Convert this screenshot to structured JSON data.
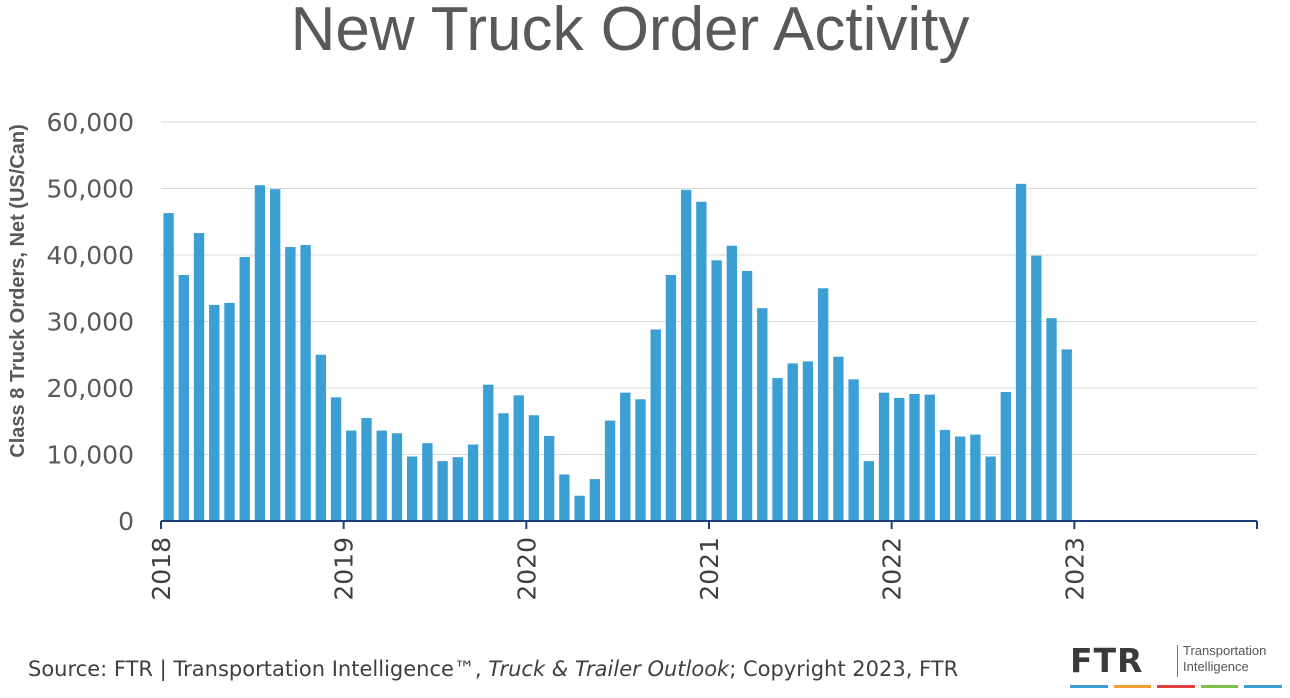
{
  "title": "New Truck Order Activity",
  "chart_data": {
    "type": "bar",
    "title": "New Truck Order Activity",
    "ylabel": "Class 8 Truck Orders, Net (US/Can)",
    "xlabel": "",
    "ylim": [
      0,
      60000
    ],
    "yticks": [
      0,
      10000,
      20000,
      30000,
      40000,
      50000,
      60000
    ],
    "ytick_labels": [
      "0",
      "10,000",
      "20,000",
      "30,000",
      "40,000",
      "50,000",
      "60,000"
    ],
    "xtick_labels": [
      "2018",
      "2019",
      "2020",
      "2021",
      "2022",
      "2023"
    ],
    "months_total": 72,
    "grid": true,
    "bar_color": "#3b9fd3",
    "axis_color": "#1f3f7a",
    "series": [
      {
        "name": "Class 8 Truck Orders",
        "values": [
          46300,
          37000,
          43300,
          32500,
          32800,
          39700,
          50500,
          49900,
          41200,
          41500,
          25000,
          18600,
          13600,
          15500,
          13600,
          13200,
          9700,
          11700,
          9000,
          9600,
          11500,
          20500,
          16200,
          18900,
          15900,
          12800,
          7000,
          3800,
          6300,
          15100,
          19300,
          18300,
          28800,
          37000,
          49800,
          48000,
          39200,
          41400,
          37600,
          32000,
          21500,
          23700,
          24000,
          35000,
          24700,
          21300,
          9000,
          19300,
          18500,
          19100,
          19000,
          13700,
          12700,
          13000,
          9700,
          19400,
          50700,
          39900,
          30500,
          25800
        ]
      }
    ]
  },
  "footer": {
    "prefix": "Source: FTR | Transportation Intelligence™, ",
    "italic": "Truck & Trailer Outlook",
    "suffix": "; Copyright 2023, FTR"
  },
  "logo": {
    "mark": "FTR",
    "line1": "Transportation",
    "line2": "Intelligence",
    "stripe_colors": [
      "#3b9fd3",
      "#f0a030",
      "#e04040",
      "#7ac04a",
      "#3b9fd3"
    ]
  }
}
